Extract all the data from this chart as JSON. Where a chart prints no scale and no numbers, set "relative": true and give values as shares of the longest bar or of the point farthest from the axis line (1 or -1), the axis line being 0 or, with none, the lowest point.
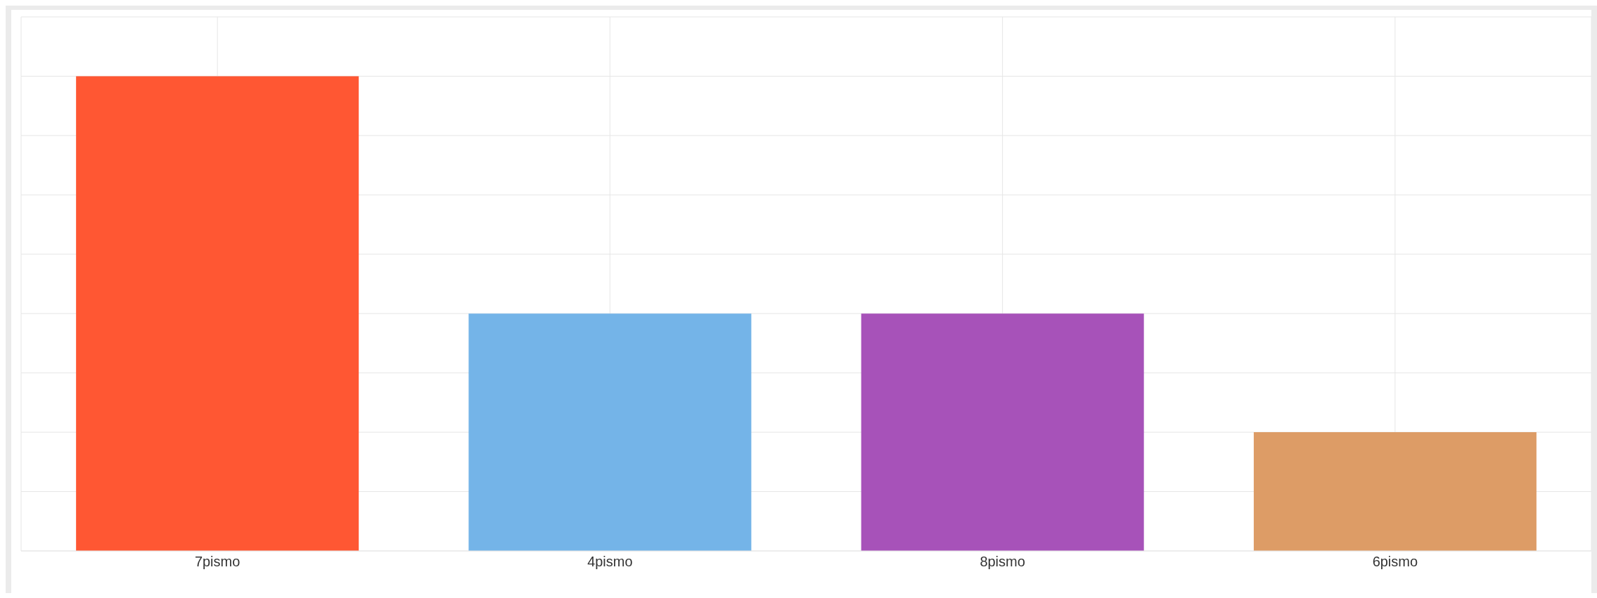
{
  "chart_data": {
    "type": "bar",
    "relative": true,
    "categories": [
      "7pismo",
      "4pismo",
      "8pismo",
      "6pismo"
    ],
    "values": [
      1,
      0.5,
      0.5,
      0.25
    ],
    "colors": [
      "#ff5733",
      "#74b4e8",
      "#a752b9",
      "#dd9c66"
    ],
    "grid": true
  }
}
